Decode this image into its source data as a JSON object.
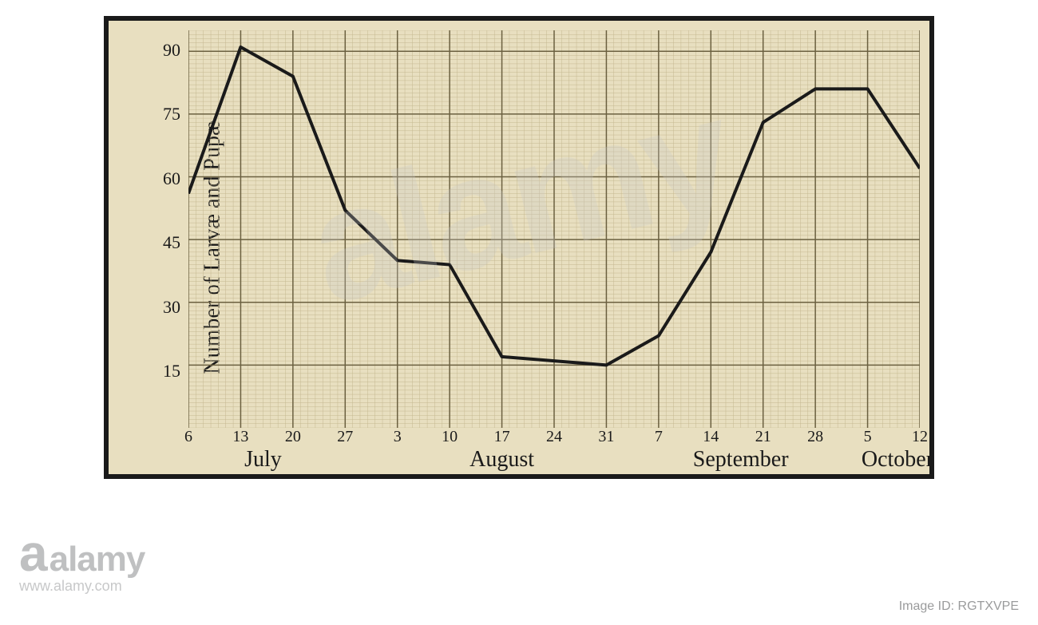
{
  "chart": {
    "type": "line",
    "ylabel": "Number of Larvæ and Pupæ",
    "ylim": [
      0,
      95
    ],
    "yticks": [
      15,
      30,
      45,
      60,
      75,
      90
    ],
    "ytick_labels": [
      "15",
      "30",
      "45",
      "60",
      "75",
      "90"
    ],
    "xticks": [
      6,
      13,
      20,
      27,
      34,
      41,
      48,
      55,
      62,
      69,
      76,
      83,
      90,
      97,
      104
    ],
    "xtick_labels": [
      "6",
      "13",
      "20",
      "27",
      "3",
      "10",
      "17",
      "24",
      "31",
      "7",
      "14",
      "21",
      "28",
      "5",
      "12"
    ],
    "months": [
      {
        "label": "July",
        "center_day": 16
      },
      {
        "label": "August",
        "center_day": 48
      },
      {
        "label": "September",
        "center_day": 80
      },
      {
        "label": "October",
        "center_day": 101
      }
    ],
    "x_range": [
      6,
      104
    ],
    "values": [
      56,
      91,
      84,
      52,
      40,
      39,
      17,
      16,
      15,
      22,
      42,
      73,
      81,
      81,
      62
    ],
    "line_color": "#1a1a1a",
    "line_width": 4,
    "paper_color": "#e8dfc0",
    "border_color": "#1a1a1a",
    "grid_fine_color": "#c5b890",
    "grid_major_color": "#6b6040",
    "ylabel_fontsize": 28,
    "tick_fontsize": 22
  },
  "watermark": {
    "brand_symbol": "a",
    "brand_text": "alamy",
    "url": "www.alamy.com",
    "image_id": "Image ID: RGTXVPE",
    "diag_text": "alamy"
  }
}
